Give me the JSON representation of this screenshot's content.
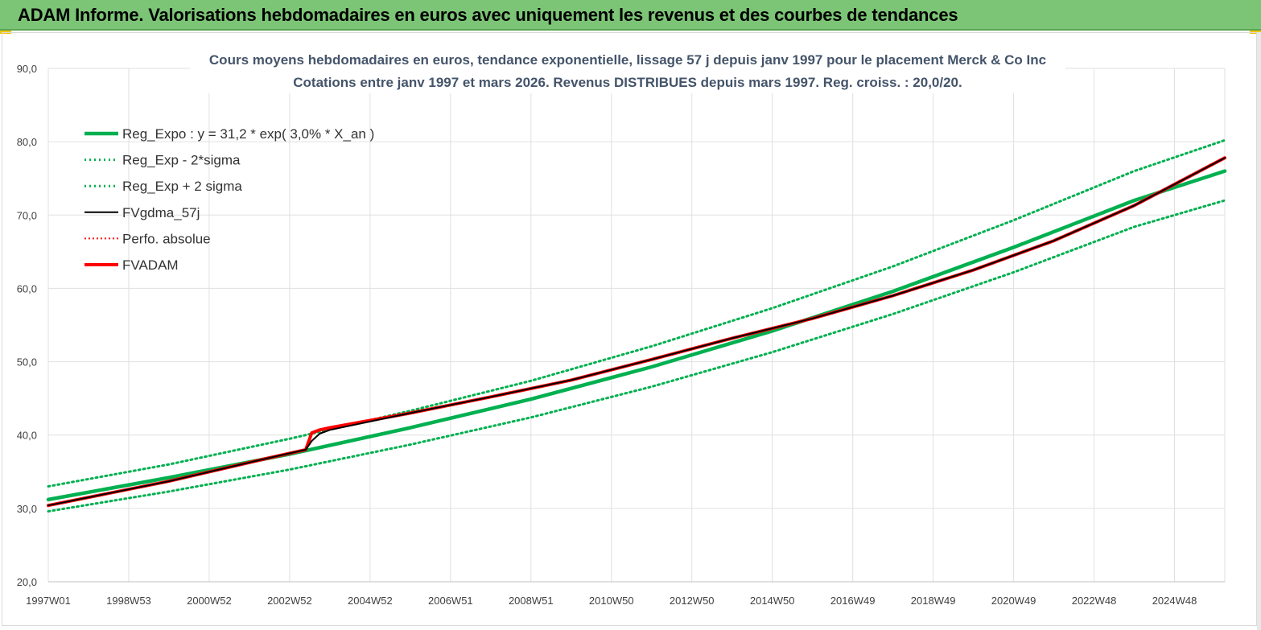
{
  "header": {
    "title": "ADAM Informe. Valorisations hebdomadaires en euros avec uniquement les revenus et des courbes de tendances"
  },
  "colors": {
    "header_bg": "#7cc576",
    "green": "#00b050",
    "red": "#ff0000",
    "black": "#000000",
    "grid": "#e0e0e0",
    "title_text": "#44546a",
    "accent_yellow": "#f2c500"
  },
  "chart_data": {
    "type": "line",
    "title": "Cours moyens hebdomadaires en euros, tendance exponentielle, lissage 57 j depuis janv 1997 pour le placement Merck & Co Inc",
    "subtitle": "Cotations entre janv 1997 et mars 2026. Revenus DISTRIBUES depuis mars 1997. Reg. croiss. : 20,0/20.",
    "xlabel": "",
    "ylabel": "",
    "ylim": [
      20,
      90
    ],
    "yticks": [
      "20,0",
      "30,0",
      "40,0",
      "50,0",
      "60,0",
      "70,0",
      "80,0",
      "90,0"
    ],
    "x_range": [
      1997.0,
      2026.25
    ],
    "x_categories": [
      "1997W01",
      "1998W53",
      "2000W52",
      "2002W52",
      "2004W52",
      "2006W51",
      "2008W51",
      "2010W50",
      "2012W50",
      "2014W50",
      "2016W49",
      "2018W49",
      "2020W49",
      "2022W48",
      "2024W48"
    ],
    "grid": true,
    "legend_position": "top-left",
    "legend": [
      {
        "label": "Reg_Expo : y = 31,2 * exp( 3,0% *  X_an )",
        "style": "solid-green"
      },
      {
        "label": "Reg_Exp - 2*sigma",
        "style": "dotted-green"
      },
      {
        "label": "Reg_Exp + 2 sigma",
        "style": "dotted-green"
      },
      {
        "label": "FVgdma_57j",
        "style": "solid-black"
      },
      {
        "label": "Perfo. absolue",
        "style": "dotted-red"
      },
      {
        "label": "FVADAM",
        "style": "solid-red"
      }
    ],
    "series": [
      {
        "name": "Reg_Expo : y = 31,2 * exp( 3,0% *  X_an )",
        "x": [
          1997,
          2000,
          2003,
          2006,
          2009,
          2012,
          2015,
          2018,
          2021,
          2024,
          2026.25
        ],
        "values": [
          31.2,
          34.2,
          37.4,
          41.0,
          44.9,
          49.3,
          54.2,
          59.6,
          65.6,
          72.0,
          76.0
        ]
      },
      {
        "name": "Reg_Exp - 2*sigma",
        "x": [
          1997,
          2000,
          2003,
          2006,
          2009,
          2012,
          2015,
          2018,
          2021,
          2024,
          2026.25
        ],
        "values": [
          29.6,
          32.3,
          35.3,
          38.7,
          42.4,
          46.6,
          51.3,
          56.5,
          62.2,
          68.4,
          72.0
        ]
      },
      {
        "name": "Reg_Exp + 2 sigma",
        "x": [
          1997,
          2000,
          2003,
          2006,
          2009,
          2012,
          2015,
          2018,
          2021,
          2024,
          2026.25
        ],
        "values": [
          33.0,
          36.0,
          39.5,
          43.3,
          47.4,
          52.1,
          57.3,
          63.0,
          69.3,
          76.0,
          80.2
        ]
      },
      {
        "name": "FVgdma_57j",
        "x": [
          1997,
          2000,
          2002.5,
          2003.4,
          2003.55,
          2003.75,
          2004,
          2006,
          2008,
          2010,
          2012,
          2014,
          2016,
          2018,
          2020,
          2022,
          2024,
          2026.25
        ],
        "values": [
          30.4,
          33.7,
          36.9,
          38.0,
          39.2,
          40.2,
          40.7,
          43.0,
          45.2,
          47.5,
          50.3,
          53.2,
          55.9,
          59.0,
          62.5,
          66.5,
          71.3,
          77.8
        ]
      },
      {
        "name": "Perfo. absolue",
        "x": [
          1997,
          2000,
          2002.5,
          2003.4,
          2003.55,
          2003.75,
          2004,
          2006,
          2008,
          2010,
          2012,
          2014,
          2016,
          2018,
          2020,
          2022,
          2024,
          2026.25
        ],
        "values": [
          30.4,
          33.7,
          36.9,
          38.0,
          39.2,
          40.2,
          40.7,
          43.0,
          45.2,
          47.5,
          50.3,
          53.2,
          55.9,
          59.0,
          62.5,
          66.5,
          71.3,
          77.8
        ]
      },
      {
        "name": "FVADAM",
        "x": [
          1997,
          2000,
          2002.5,
          2003.4,
          2003.55,
          2003.75,
          2004,
          2006,
          2008,
          2010,
          2012,
          2014,
          2016,
          2018,
          2020,
          2022,
          2024,
          2026.25
        ],
        "values": [
          30.4,
          33.7,
          36.9,
          38.0,
          40.3,
          40.7,
          41.0,
          43.0,
          45.2,
          47.5,
          50.3,
          53.2,
          55.9,
          59.0,
          62.5,
          66.5,
          71.3,
          77.8
        ]
      }
    ]
  }
}
